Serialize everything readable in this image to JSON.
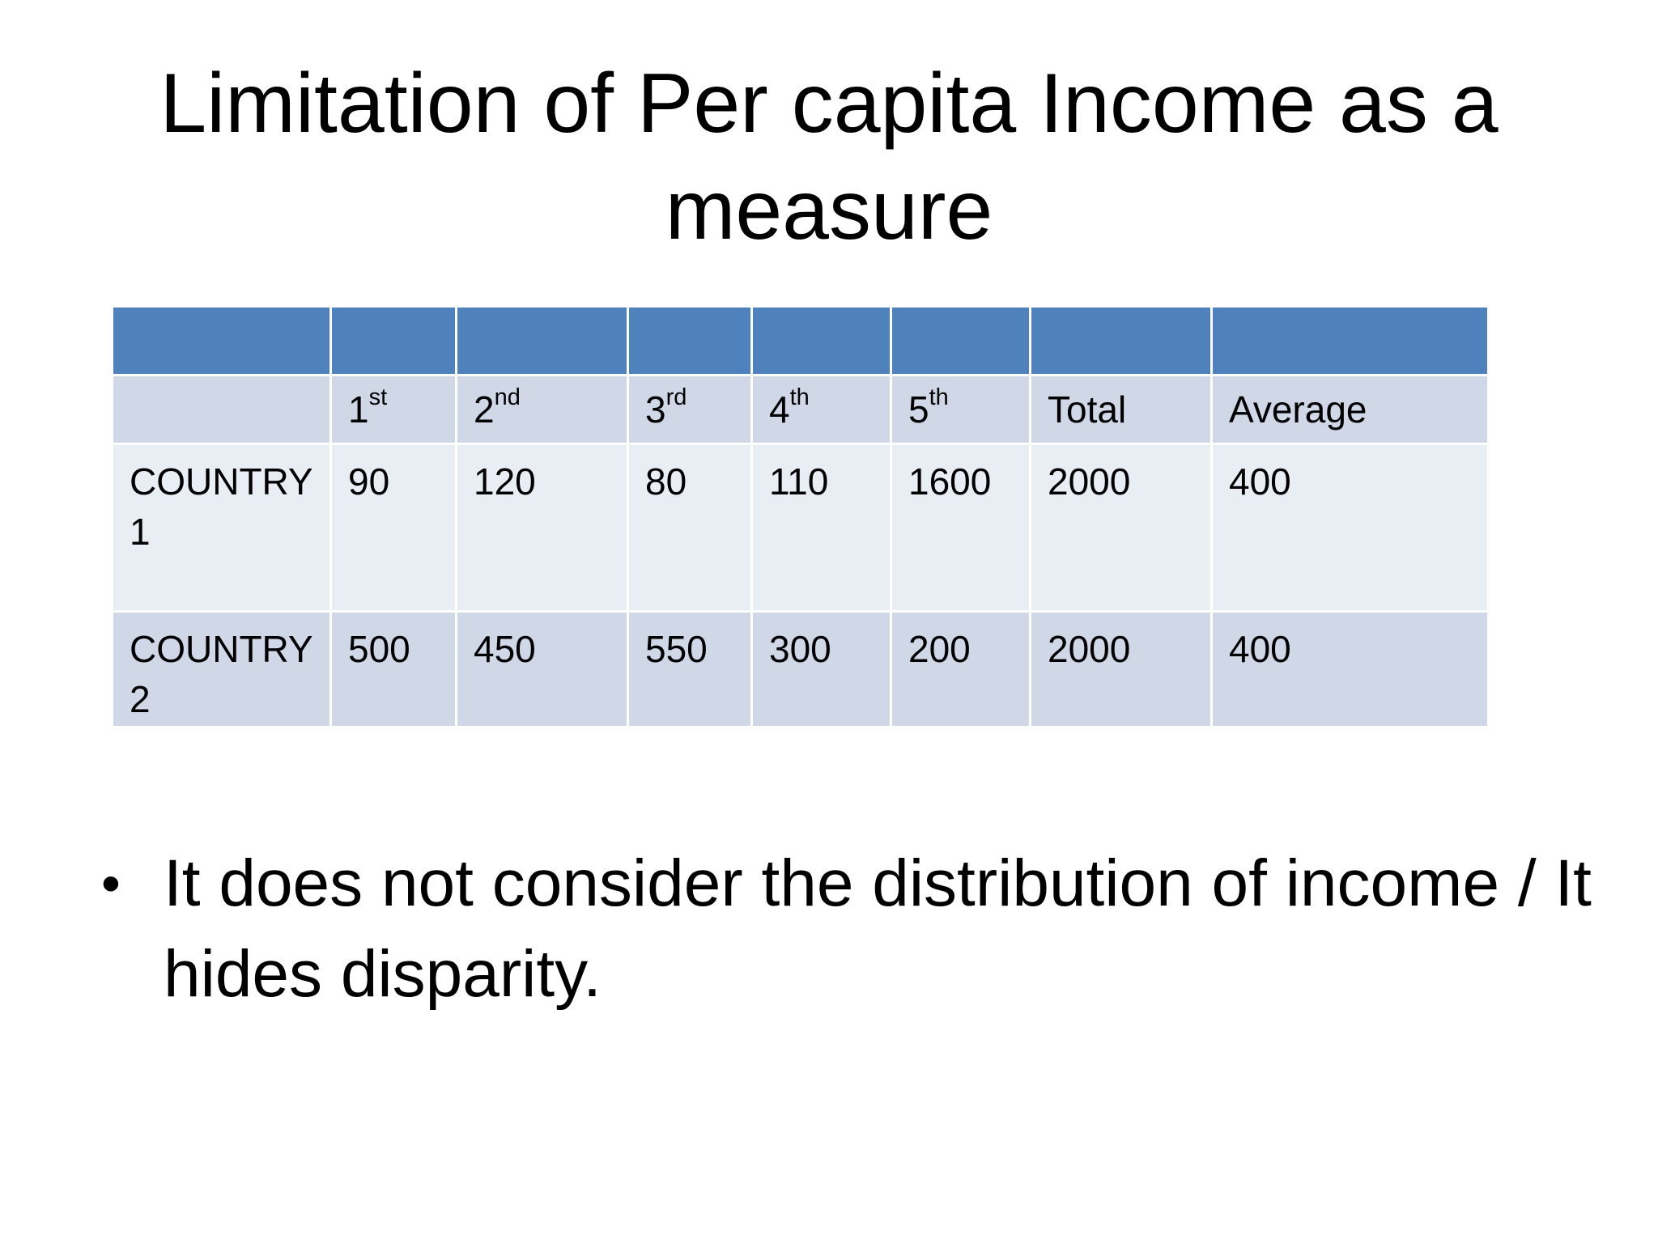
{
  "slide": {
    "title": "Limitation of Per capita Income as a measure"
  },
  "table": {
    "columns": [
      {
        "num": "",
        "suffix": ""
      },
      {
        "num": "1",
        "suffix": "st"
      },
      {
        "num": "2",
        "suffix": "nd"
      },
      {
        "num": "3",
        "suffix": "rd"
      },
      {
        "num": "4",
        "suffix": "th"
      },
      {
        "num": "5",
        "suffix": "th"
      },
      {
        "num": "Total",
        "suffix": ""
      },
      {
        "num": "Average",
        "suffix": ""
      }
    ],
    "rows": [
      {
        "label": "COUNTRY 1",
        "values": [
          "90",
          "120",
          "80",
          "110",
          "1600",
          "2000",
          "400"
        ]
      },
      {
        "label": "COUNTRY 2",
        "values": [
          "500",
          "450",
          "550",
          "300",
          "200",
          "2000",
          "400"
        ]
      }
    ]
  },
  "bullets": [
    "It does not consider the distribution of income / It hides disparity."
  ]
}
